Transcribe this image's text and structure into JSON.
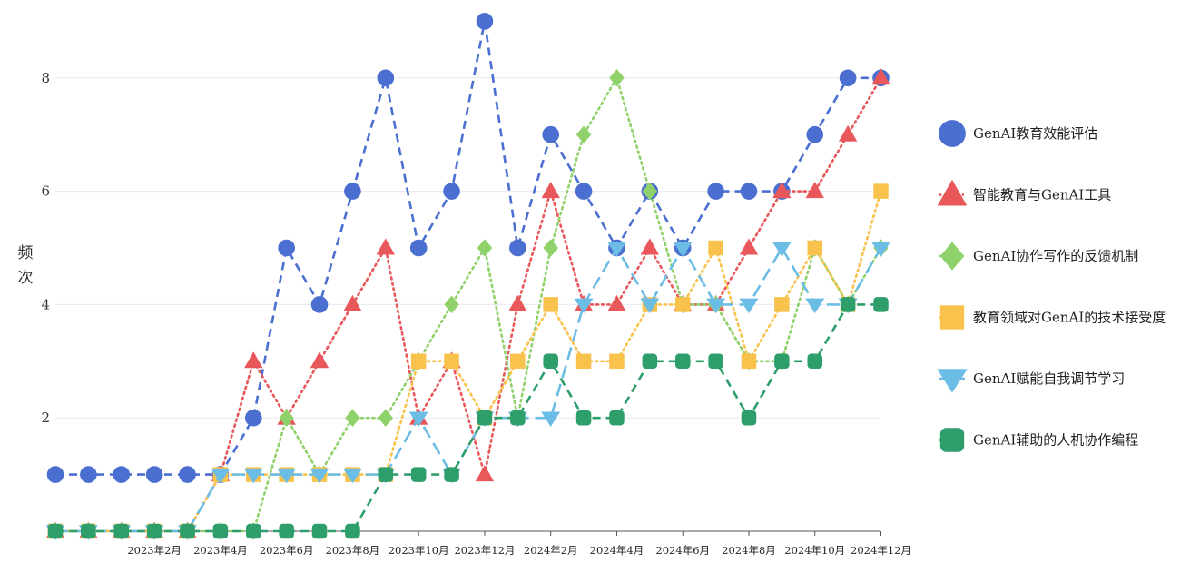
{
  "chart_data": {
    "type": "line",
    "title": "",
    "xlabel": "",
    "ylabel": "频次",
    "ylabel_chars": [
      "频",
      "次"
    ],
    "ylim": [
      0,
      9
    ],
    "y_ticks": [
      2,
      4,
      6,
      8
    ],
    "grid": "horizontal",
    "legend_position": "right",
    "x_tick_labels": [
      "2023年2月",
      "2023年4月",
      "2023年6月",
      "2023年8月",
      "2023年10月",
      "2023年12月",
      "2024年2月",
      "2024年4月",
      "2024年6月",
      "2024年8月",
      "2024年10月",
      "2024年12月"
    ],
    "x_tick_indices": [
      3,
      5,
      7,
      9,
      11,
      13,
      15,
      17,
      19,
      21,
      23,
      25
    ],
    "point_count": 26,
    "series": [
      {
        "name": "GenAI教育效能评估",
        "color": "#4a6fd0",
        "marker": "circle",
        "dash": "dashed",
        "values": [
          1,
          1,
          1,
          1,
          1,
          1,
          2,
          5,
          4,
          6,
          8,
          5,
          6,
          9,
          5,
          7,
          6,
          5,
          6,
          5,
          6,
          6,
          6,
          7,
          8,
          8
        ]
      },
      {
        "name": "智能教育与GenAI工具",
        "color": "#e8585b",
        "marker": "triangle",
        "dash": "dotted",
        "values": [
          0,
          0,
          0,
          0,
          0,
          1,
          3,
          2,
          3,
          4,
          5,
          2,
          3,
          1,
          4,
          6,
          4,
          4,
          5,
          4,
          4,
          5,
          6,
          6,
          7,
          8
        ]
      },
      {
        "name": "GenAI协作写作的反馈机制",
        "color": "#8fd16a",
        "marker": "diamond",
        "dash": "dotted",
        "values": [
          0,
          0,
          0,
          0,
          0,
          0,
          0,
          2,
          1,
          2,
          2,
          3,
          4,
          5,
          2,
          5,
          7,
          8,
          6,
          4,
          4,
          3,
          3,
          5,
          4,
          5
        ]
      },
      {
        "name": "教育领域对GenAI的技术接受度",
        "color": "#f8c24c",
        "marker": "square",
        "dash": "dotted",
        "values": [
          0,
          0,
          0,
          0,
          0,
          1,
          1,
          1,
          1,
          1,
          1,
          3,
          3,
          2,
          3,
          4,
          3,
          3,
          4,
          4,
          5,
          3,
          4,
          5,
          4,
          6
        ]
      },
      {
        "name": "GenAI赋能自我调节学习",
        "color": "#6cbde5",
        "marker": "triangle-down",
        "dash": "longdash",
        "values": [
          0,
          0,
          0,
          0,
          0,
          1,
          1,
          1,
          1,
          1,
          1,
          2,
          1,
          2,
          2,
          2,
          4,
          5,
          4,
          5,
          4,
          4,
          5,
          4,
          4,
          5
        ]
      },
      {
        "name": "GenAI辅助的人机协作编程",
        "color": "#2e9e6a",
        "marker": "roundsquare",
        "dash": "dashed",
        "values": [
          0,
          0,
          0,
          0,
          0,
          0,
          0,
          0,
          0,
          0,
          1,
          1,
          1,
          2,
          2,
          3,
          2,
          2,
          3,
          3,
          3,
          2,
          3,
          3,
          4,
          4
        ]
      }
    ]
  }
}
